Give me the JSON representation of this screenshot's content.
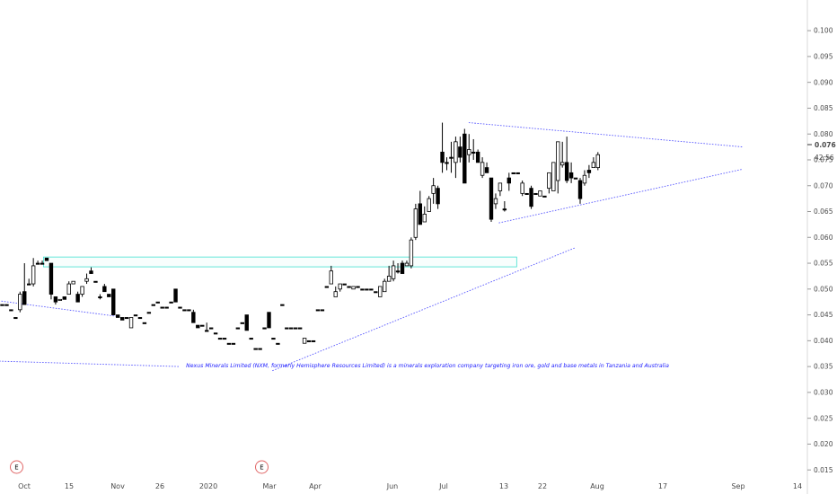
{
  "chart_data": {
    "type": "candlestick",
    "y_axis": {
      "ylim": [
        0.0126,
        0.1035
      ],
      "ticks": [
        "0.015",
        "0.020",
        "0.025",
        "0.030",
        "0.035",
        "0.040",
        "0.045",
        "0.050",
        "0.055",
        "0.060",
        "0.065",
        "0.070",
        "0.075",
        "0.080",
        "0.085",
        "0.090",
        "0.095",
        "0.100"
      ],
      "tick_values": [
        0.015,
        0.02,
        0.025,
        0.03,
        0.035,
        0.04,
        0.045,
        0.05,
        0.055,
        0.06,
        0.065,
        0.07,
        0.075,
        0.08,
        0.085,
        0.09,
        0.095,
        0.1
      ]
    },
    "price_label": {
      "value": "0.076",
      "countdown": "42:56",
      "price": 0.076
    },
    "x_axis": {
      "labels": [
        {
          "text": "Oct",
          "date": "2019-10-01"
        },
        {
          "text": "15",
          "date": "2019-10-15"
        },
        {
          "text": "Nov",
          "date": "2019-11-01"
        },
        {
          "text": "26",
          "date": "2019-11-26"
        },
        {
          "text": "2020",
          "date": "2020-01-01"
        },
        {
          "text": "Mar",
          "date": "2020-03-01"
        },
        {
          "text": "Apr",
          "date": "2020-04-01"
        },
        {
          "text": "Jun",
          "date": "2020-06-01"
        },
        {
          "text": "Jul",
          "date": "2020-07-01"
        },
        {
          "text": "13",
          "date": "2020-07-13"
        },
        {
          "text": "22",
          "date": "2020-07-22"
        },
        {
          "text": "Aug",
          "date": "2020-08-01"
        },
        {
          "text": "17",
          "date": "2020-08-17"
        },
        {
          "text": "Sep",
          "date": "2020-09-01"
        },
        {
          "text": "14",
          "date": "2020-09-14"
        }
      ]
    },
    "earnings_markers": [
      {
        "label": "E",
        "date": "2019-10-01"
      },
      {
        "label": "E",
        "date": "2020-03-01"
      }
    ],
    "annotation": "Nexus Minerals Limited (NXM, formerly Hemisphere Resources Limited) is a minerals exploration company targeting iron ore, gold and base metals in Tanzania and Australia",
    "colors": {
      "candle_up": "#ffffff",
      "candle_down": "#000000",
      "trendline": "#5a5aff",
      "zone": "#40e0d0",
      "annotation": "#1a1aff"
    },
    "zone": {
      "x_start": "2019-10-07",
      "x_end": "2020-07-16",
      "price_low": 0.0543,
      "price_high": 0.0562
    },
    "trendlines": [
      {
        "from": {
          "date": "2019-08-30",
          "price": 0.0497
        },
        "to": {
          "date": "2019-11-01",
          "price": 0.0447
        }
      },
      {
        "from": {
          "date": "2019-08-30",
          "price": 0.0365
        },
        "to": {
          "date": "2019-12-11",
          "price": 0.035
        }
      },
      {
        "from": {
          "date": "2020-03-03",
          "price": 0.0342
        },
        "to": {
          "date": "2020-07-28",
          "price": 0.058
        }
      },
      {
        "from": {
          "date": "2020-07-06",
          "price": 0.0822
        },
        "to": {
          "date": "2020-09-02",
          "price": 0.0775
        }
      },
      {
        "from": {
          "date": "2020-07-12",
          "price": 0.0628
        },
        "to": {
          "date": "2020-09-02",
          "price": 0.0732
        }
      }
    ],
    "candles": [
      [
        0.047,
        0.047,
        0.047,
        0.047
      ],
      [
        0.047,
        0.047,
        0.047,
        0.047
      ],
      [
        0.046,
        0.046,
        0.046,
        0.046
      ],
      [
        0.0445,
        0.0445,
        0.0445,
        0.0445
      ],
      [
        0.046,
        0.0495,
        0.0455,
        0.049
      ],
      [
        0.0495,
        0.055,
        0.047,
        0.047
      ],
      [
        0.051,
        0.052,
        0.051,
        0.051
      ],
      [
        0.051,
        0.056,
        0.0505,
        0.0545
      ],
      [
        0.055,
        0.0555,
        0.055,
        0.055
      ],
      [
        0.055,
        0.0555,
        0.055,
        0.055
      ],
      [
        0.056,
        0.056,
        0.0555,
        0.0555
      ],
      [
        0.055,
        0.055,
        0.048,
        0.049
      ],
      [
        0.0485,
        0.0485,
        0.047,
        0.0475
      ],
      [
        0.0478,
        0.048,
        0.0478,
        0.048
      ],
      [
        0.0485,
        0.0485,
        0.048,
        0.048
      ],
      [
        0.049,
        0.0515,
        0.049,
        0.051
      ],
      [
        0.051,
        0.0515,
        0.051,
        0.0515
      ],
      [
        0.049,
        0.0495,
        0.0475,
        0.0475
      ],
      [
        0.049,
        0.0505,
        0.0485,
        0.0505
      ],
      [
        0.0515,
        0.053,
        0.051,
        0.052
      ],
      [
        0.0535,
        0.0542,
        0.053,
        0.053
      ],
      [
        0.0515,
        0.0515,
        0.0515,
        0.0515
      ],
      [
        0.0485,
        0.049,
        0.048,
        0.0485
      ],
      [
        0.0505,
        0.051,
        0.0495,
        0.0495
      ],
      [
        0.049,
        0.049,
        0.0485,
        0.0485
      ],
      [
        0.05,
        0.05,
        0.045,
        0.045
      ],
      [
        0.045,
        0.045,
        0.0445,
        0.0445
      ],
      [
        0.0445,
        0.0445,
        0.044,
        0.044
      ],
      [
        0.0445,
        0.0445,
        0.0445,
        0.0445
      ],
      [
        0.0425,
        0.0445,
        0.0425,
        0.0445
      ],
      [
        0.045,
        0.045,
        0.045,
        0.045
      ],
      [
        0.0445,
        0.0445,
        0.0445,
        0.0445
      ],
      [
        0.0435,
        0.0435,
        0.0435,
        0.0435
      ],
      [
        0.0455,
        0.0455,
        0.0455,
        0.0455
      ],
      [
        0.047,
        0.047,
        0.047,
        0.047
      ],
      [
        0.0475,
        0.0475,
        0.0475,
        0.0475
      ],
      [
        0.0465,
        0.0465,
        0.0465,
        0.0465
      ],
      [
        0.0465,
        0.0465,
        0.0465,
        0.0465
      ],
      [
        0.0475,
        0.0475,
        0.0475,
        0.0475
      ],
      [
        0.05,
        0.05,
        0.0475,
        0.0475
      ],
      [
        0.0465,
        0.0465,
        0.0465,
        0.0465
      ],
      [
        0.046,
        0.046,
        0.046,
        0.046
      ],
      [
        0.046,
        0.046,
        0.046,
        0.046
      ],
      [
        0.0455,
        0.046,
        0.0435,
        0.0435
      ],
      [
        0.043,
        0.043,
        0.0425,
        0.0425
      ],
      [
        0.043,
        0.043,
        0.043,
        0.043
      ],
      [
        0.042,
        0.0435,
        0.042,
        0.042
      ],
      [
        0.0425,
        0.0425,
        0.0425,
        0.0425
      ],
      [
        0.0415,
        0.0415,
        0.0415,
        0.0415
      ],
      [
        0.0405,
        0.0405,
        0.0405,
        0.0405
      ],
      [
        0.0405,
        0.0405,
        0.0405,
        0.0405
      ],
      [
        0.0395,
        0.0395,
        0.0395,
        0.0395
      ],
      [
        0.0395,
        0.0395,
        0.0395,
        0.0395
      ],
      [
        0.0425,
        0.0425,
        0.0425,
        0.0425
      ],
      [
        0.0435,
        0.0435,
        0.0435,
        0.0435
      ],
      [
        0.045,
        0.045,
        0.042,
        0.042
      ],
      [
        0.0405,
        0.0405,
        0.0405,
        0.0405
      ],
      [
        0.0385,
        0.0385,
        0.0385,
        0.0385
      ],
      [
        0.0385,
        0.0385,
        0.0385,
        0.0385
      ],
      [
        0.0425,
        0.0425,
        0.0425,
        0.0425
      ],
      [
        0.0455,
        0.0455,
        0.0425,
        0.0425
      ],
      [
        0.0405,
        0.0405,
        0.0405,
        0.0405
      ],
      [
        0.0395,
        0.0395,
        0.0395,
        0.0395
      ],
      [
        0.047,
        0.047,
        0.047,
        0.047
      ],
      [
        0.0425,
        0.0425,
        0.0425,
        0.0425
      ],
      [
        0.0425,
        0.0425,
        0.0425,
        0.0425
      ],
      [
        0.0425,
        0.0425,
        0.0425,
        0.0425
      ],
      [
        0.0425,
        0.0425,
        0.0425,
        0.0425
      ],
      [
        0.0395,
        0.0405,
        0.0395,
        0.0405
      ],
      [
        0.04,
        0.04,
        0.04,
        0.04
      ],
      [
        0.04,
        0.04,
        0.04,
        0.04
      ],
      [
        0.046,
        0.046,
        0.046,
        0.046
      ],
      [
        0.046,
        0.046,
        0.046,
        0.046
      ],
      [
        0.0505,
        0.0505,
        0.0505,
        0.0505
      ],
      [
        0.051,
        0.0545,
        0.051,
        0.0535
      ],
      [
        0.0485,
        0.0505,
        0.0485,
        0.0495
      ],
      [
        0.05,
        0.051,
        0.0495,
        0.051
      ],
      [
        0.051,
        0.051,
        0.051,
        0.051
      ],
      [
        0.0505,
        0.0505,
        0.0505,
        0.0505
      ],
      [
        0.05,
        0.0505,
        0.05,
        0.0505
      ],
      [
        0.0505,
        0.0505,
        0.0505,
        0.0505
      ],
      [
        0.05,
        0.05,
        0.05,
        0.05
      ],
      [
        0.05,
        0.05,
        0.05,
        0.05
      ],
      [
        0.05,
        0.05,
        0.05,
        0.05
      ],
      [
        0.0495,
        0.0495,
        0.0495,
        0.0495
      ],
      [
        0.0485,
        0.0505,
        0.0485,
        0.0505
      ],
      [
        0.0495,
        0.052,
        0.0495,
        0.0515
      ],
      [
        0.0515,
        0.0545,
        0.0515,
        0.0525
      ],
      [
        0.052,
        0.0555,
        0.0515,
        0.0545
      ],
      [
        0.0535,
        0.055,
        0.053,
        0.0535
      ],
      [
        0.055,
        0.0555,
        0.053,
        0.053
      ],
      [
        0.0545,
        0.0555,
        0.0545,
        0.055
      ],
      [
        0.0545,
        0.06,
        0.054,
        0.0595
      ],
      [
        0.06,
        0.0665,
        0.0595,
        0.0655
      ],
      [
        0.0665,
        0.069,
        0.0625,
        0.0625
      ],
      [
        0.063,
        0.066,
        0.063,
        0.0645
      ],
      [
        0.065,
        0.068,
        0.065,
        0.0675
      ],
      [
        0.0685,
        0.0715,
        0.0665,
        0.07
      ],
      [
        0.0695,
        0.07,
        0.0655,
        0.0665
      ],
      [
        0.0765,
        0.0822,
        0.0725,
        0.0745
      ],
      [
        0.0745,
        0.0755,
        0.073,
        0.0745
      ],
      [
        0.0755,
        0.0785,
        0.0725,
        0.0755
      ],
      [
        0.0745,
        0.0795,
        0.0715,
        0.0785
      ],
      [
        0.0775,
        0.0795,
        0.0745,
        0.0755
      ],
      [
        0.08,
        0.081,
        0.0705,
        0.0705
      ],
      [
        0.076,
        0.08,
        0.0745,
        0.077
      ],
      [
        0.0765,
        0.079,
        0.075,
        0.0765
      ],
      [
        0.0765,
        0.077,
        0.0745,
        0.0745
      ],
      [
        0.072,
        0.0755,
        0.0715,
        0.0745
      ],
      [
        0.0735,
        0.0745,
        0.0725,
        0.0725
      ],
      [
        0.0715,
        0.0715,
        0.063,
        0.0635
      ],
      [
        0.0665,
        0.0685,
        0.0655,
        0.0675
      ],
      [
        0.069,
        0.0705,
        0.068,
        0.0705
      ],
      [
        0.0655,
        0.067,
        0.065,
        0.0655
      ],
      [
        0.0715,
        0.0725,
        0.069,
        0.0705
      ],
      [
        0.0725,
        0.0725,
        0.0725,
        0.0725
      ],
      [
        0.0725,
        0.0725,
        0.0725,
        0.0725
      ],
      [
        0.0685,
        0.071,
        0.068,
        0.0705
      ],
      [
        0.0685,
        0.0685,
        0.0685,
        0.0685
      ],
      [
        0.0695,
        0.07,
        0.0655,
        0.066
      ],
      [
        0.0685,
        0.0685,
        0.0685,
        0.0685
      ],
      [
        0.068,
        0.069,
        0.068,
        0.069
      ],
      [
        0.068,
        0.068,
        0.068,
        0.068
      ],
      [
        0.0695,
        0.0725,
        0.0685,
        0.0725
      ],
      [
        0.069,
        0.0745,
        0.069,
        0.0745
      ],
      [
        0.071,
        0.0785,
        0.0685,
        0.0785
      ],
      [
        0.074,
        0.0785,
        0.0735,
        0.0745
      ],
      [
        0.0745,
        0.0795,
        0.0705,
        0.071
      ],
      [
        0.0725,
        0.0745,
        0.0705,
        0.0715
      ],
      [
        0.0715,
        0.0715,
        0.0715,
        0.0715
      ],
      [
        0.071,
        0.0715,
        0.0665,
        0.0675
      ],
      [
        0.0705,
        0.073,
        0.07,
        0.072
      ],
      [
        0.073,
        0.074,
        0.0715,
        0.0725
      ],
      [
        0.0735,
        0.0755,
        0.0735,
        0.0745
      ],
      [
        0.0735,
        0.0765,
        0.073,
        0.076
      ]
    ]
  }
}
